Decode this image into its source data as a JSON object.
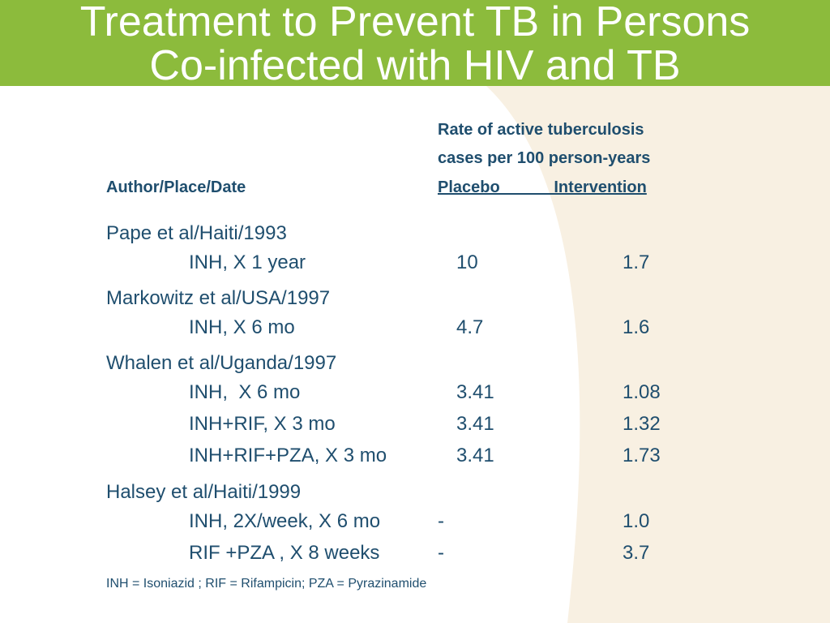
{
  "title_line1": "Treatment to Prevent TB in Persons",
  "title_line2": "Co-infected with HIV and TB",
  "header": {
    "rate_line1": "Rate of active tuberculosis",
    "rate_line2": "cases per 100 person-years",
    "author_col": "Author/Place/Date",
    "placebo_intervention": "Placebo            Intervention"
  },
  "studies": [
    {
      "name": "Pape et al/Haiti/1993",
      "rows": [
        {
          "regimen": "INH, X 1 year",
          "placebo": "10",
          "intervention": "1.7"
        }
      ]
    },
    {
      "name": "Markowitz et al/USA/1997",
      "rows": [
        {
          "regimen": "INH, X 6 mo",
          "placebo": "4.7",
          "intervention": "1.6"
        }
      ]
    },
    {
      "name": "Whalen et al/Uganda/1997",
      "rows": [
        {
          "regimen": "INH,  X 6 mo",
          "placebo": "3.41",
          "intervention": "1.08"
        },
        {
          "regimen": "INH+RIF, X 3 mo",
          "placebo": "3.41",
          "intervention": "1.32"
        },
        {
          "regimen": "INH+RIF+PZA, X 3 mo",
          "placebo": "3.41",
          "intervention": "1.73"
        }
      ]
    },
    {
      "name": "Halsey et al/Haiti/1999",
      "rows": [
        {
          "regimen": "INH, 2X/week, X 6 mo",
          "placebo": "-",
          "intervention": "1.0"
        },
        {
          "regimen": "RIF +PZA , X 8 weeks",
          "placebo": "-",
          "intervention": "3.7"
        }
      ]
    }
  ],
  "footnote": "INH = Isoniazid ; RIF = Rifampicin; PZA = Pyrazinamide",
  "colors": {
    "header_band": "#8cbb3c",
    "text": "#1f4e6e",
    "cream_curve": "#f8f0e2"
  }
}
